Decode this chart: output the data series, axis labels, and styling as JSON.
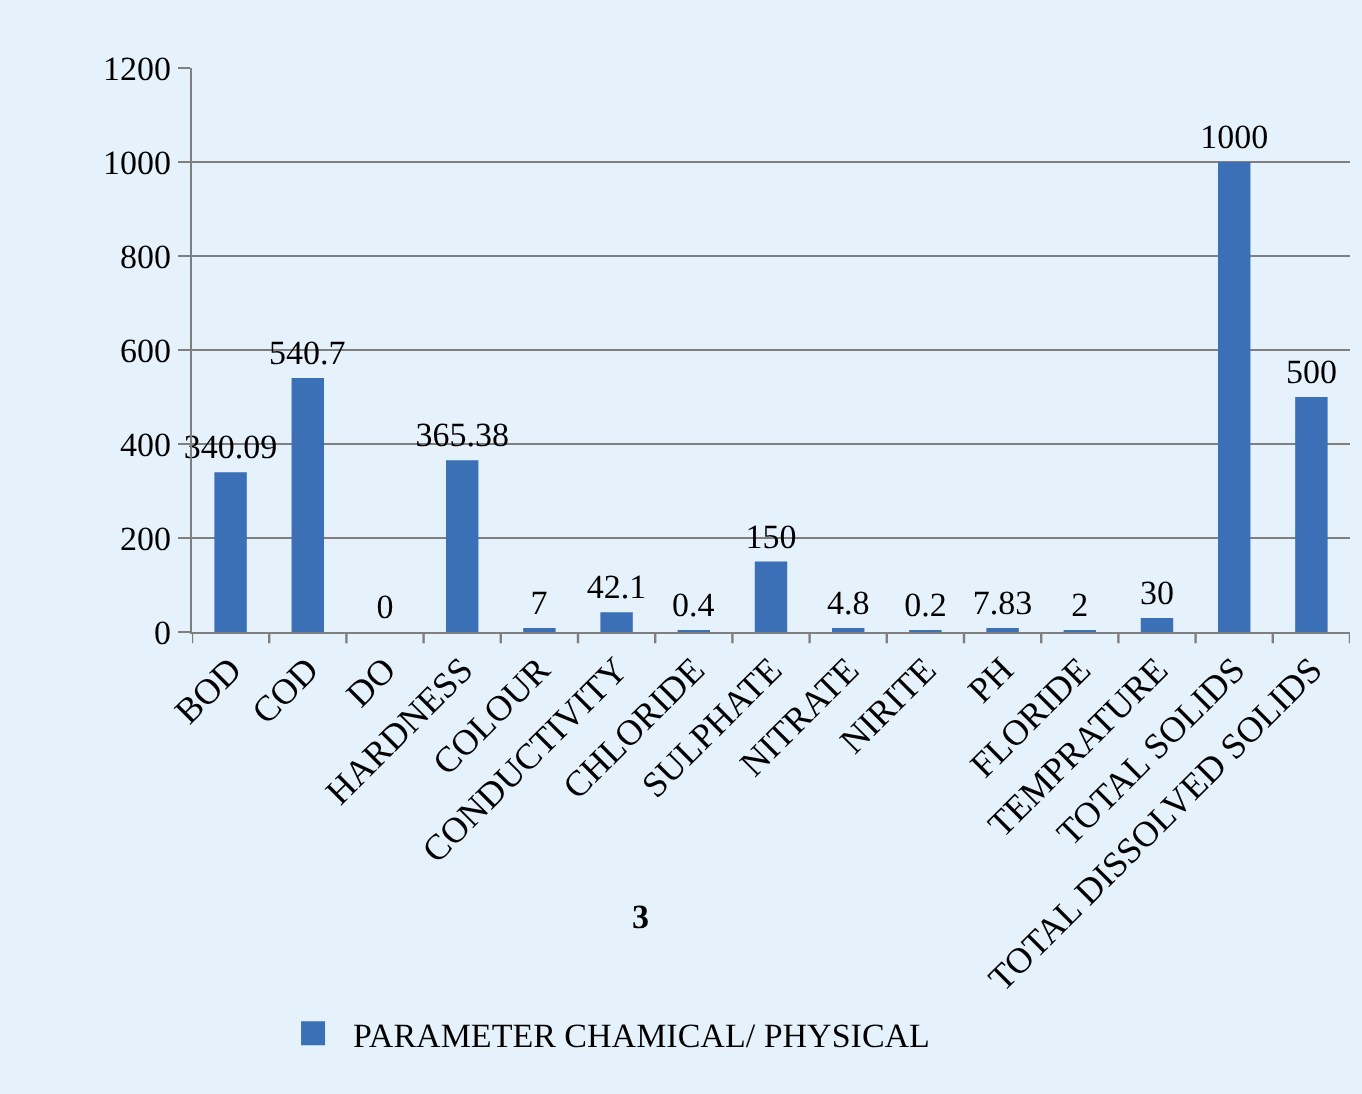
{
  "chart_data": {
    "type": "bar",
    "categories": [
      "BOD",
      "COD",
      "DO",
      "HARDNESS",
      "COLOUR",
      "CONDUCTIVITY",
      "CHLORIDE",
      "SULPHATE",
      "NITRATE",
      "NIRITE",
      "PH",
      "FLORIDE",
      "TEMPRATURE",
      "TOTAL SOLIDS",
      "TOTAL DISSOLVED SOLIDS"
    ],
    "series": [
      {
        "name": "PARAMETER CHAMICAL/ PHYSICAL",
        "color": "#3b6fb6",
        "values": [
          340.09,
          540.7,
          0,
          365.38,
          7,
          42.1,
          0.4,
          150,
          4.8,
          0.2,
          7.83,
          2,
          30,
          1000,
          500
        ]
      }
    ],
    "xlabel": "3",
    "ylim": [
      0,
      1200
    ],
    "yticks": [
      0,
      200,
      400,
      600,
      800,
      1000,
      1200
    ],
    "grid": "y",
    "legend": "bottom",
    "data_labels": true
  }
}
